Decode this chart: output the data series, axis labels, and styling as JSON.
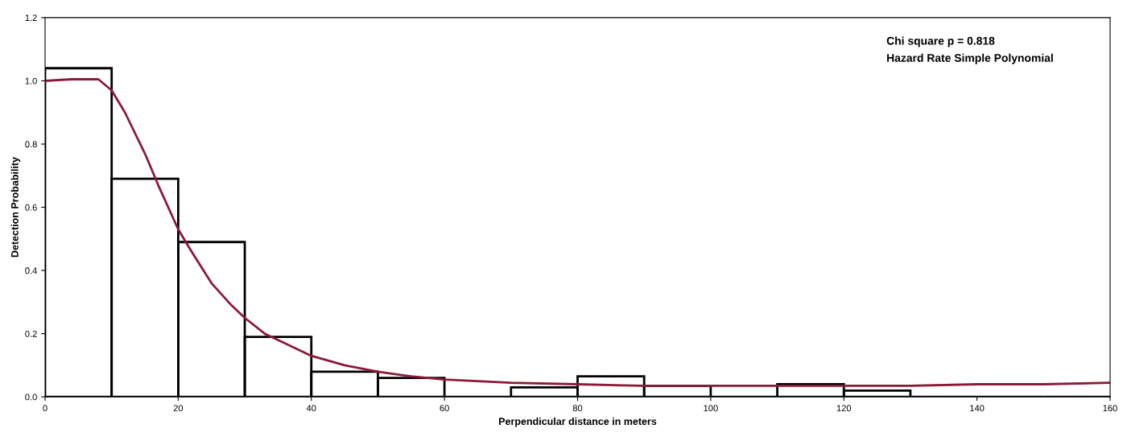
{
  "chart_data": {
    "type": "histogram",
    "xlabel": "Perpendicular distance in meters",
    "ylabel": "Detection Probability",
    "bins": [
      0,
      10,
      20,
      30,
      40,
      50,
      60,
      70,
      80,
      90,
      100,
      110,
      120,
      130,
      140,
      150,
      160
    ],
    "values": [
      1.04,
      0.69,
      0.49,
      0.19,
      0.08,
      0.06,
      0.0,
      0.03,
      0.065,
      0.035,
      0.0,
      0.04,
      0.02,
      0.0,
      0.0,
      0.0
    ],
    "color": "#000000",
    "series": [
      {
        "type": "line",
        "color": "#8b1a3a",
        "x": [
          0,
          4,
          8,
          10,
          12,
          15,
          17,
          20,
          22,
          25,
          28,
          30,
          33,
          35,
          40,
          45,
          50,
          55,
          60,
          70,
          80,
          90,
          100,
          110,
          120,
          130,
          140,
          150,
          160
        ],
        "values": [
          1.0,
          1.005,
          1.005,
          0.97,
          0.9,
          0.77,
          0.67,
          0.53,
          0.46,
          0.36,
          0.29,
          0.25,
          0.2,
          0.18,
          0.13,
          0.1,
          0.08,
          0.065,
          0.055,
          0.045,
          0.04,
          0.035,
          0.035,
          0.035,
          0.035,
          0.035,
          0.04,
          0.04,
          0.045
        ]
      }
    ],
    "xlim": [
      0,
      160
    ],
    "ylim": [
      0,
      1.2
    ],
    "xticks": [
      0,
      20,
      40,
      60,
      80,
      100,
      120,
      140,
      160
    ],
    "yticks": [
      {
        "value": 0,
        "label": "0.0"
      },
      0.2,
      0.4,
      0.6,
      0.8,
      {
        "value": 1,
        "label": "1.0"
      },
      1.2
    ],
    "annotations": [
      "Chi square p = 0.818",
      "Hazard Rate Simple Polynomial"
    ],
    "grid": false,
    "legend": false
  }
}
